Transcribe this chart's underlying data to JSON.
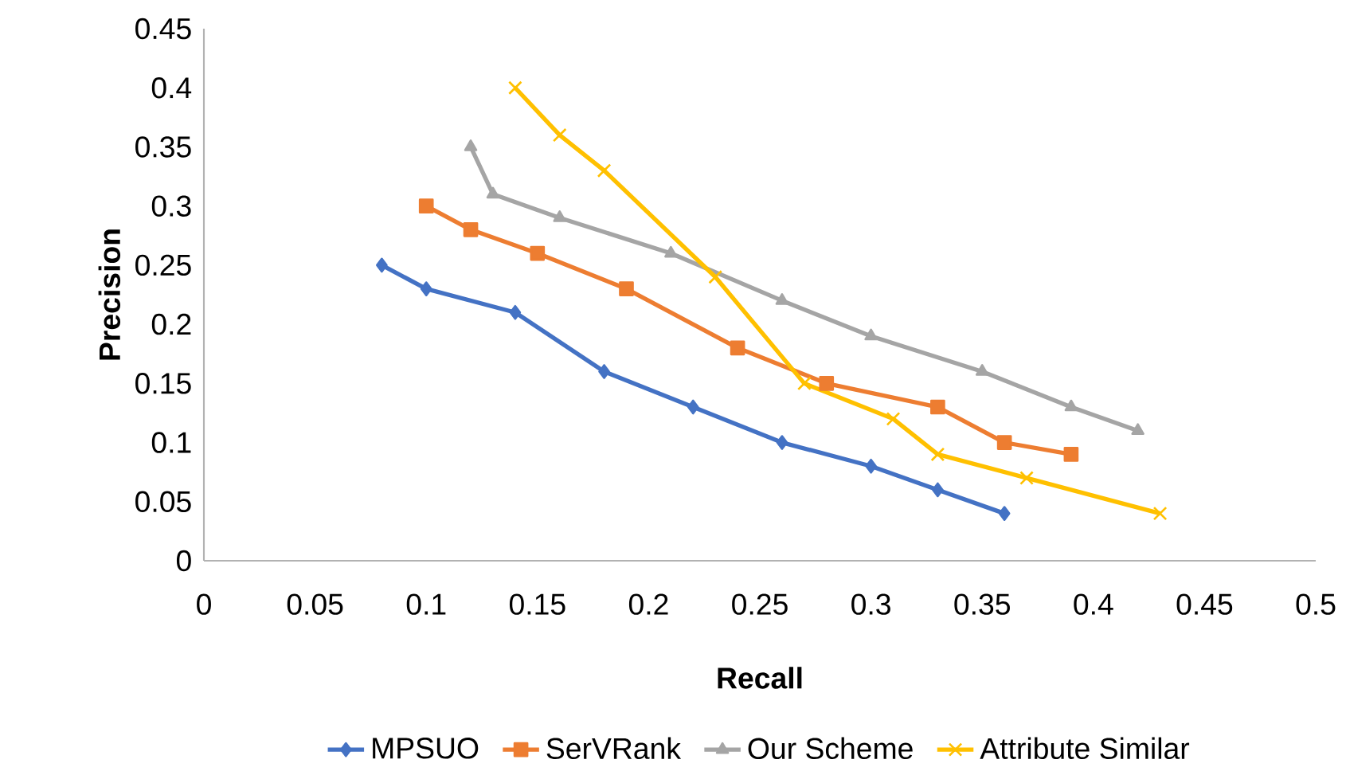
{
  "chart_data": {
    "type": "line",
    "xlabel": "Recall",
    "ylabel": "Precision",
    "xlim": [
      0,
      0.5
    ],
    "xticks": [
      0,
      0.05,
      0.1,
      0.15,
      0.2,
      0.25,
      0.3,
      0.35,
      0.4,
      0.45,
      0.5
    ],
    "ylim": [
      0,
      0.45
    ],
    "yticks": [
      0,
      0.05,
      0.1,
      0.15,
      0.2,
      0.25,
      0.3,
      0.35,
      0.4,
      0.45
    ],
    "grid": false,
    "legend": "bottom",
    "series": [
      {
        "name": "MPSUO",
        "color": "#4472c4",
        "marker": "diamond",
        "x": [
          0.08,
          0.1,
          0.14,
          0.18,
          0.22,
          0.26,
          0.3,
          0.33,
          0.36
        ],
        "values": [
          0.25,
          0.23,
          0.21,
          0.16,
          0.13,
          0.1,
          0.08,
          0.06,
          0.04
        ]
      },
      {
        "name": "SerVRank",
        "color": "#ed7d31",
        "marker": "square",
        "x": [
          0.1,
          0.12,
          0.15,
          0.19,
          0.24,
          0.28,
          0.33,
          0.36,
          0.39
        ],
        "values": [
          0.3,
          0.28,
          0.26,
          0.23,
          0.18,
          0.15,
          0.13,
          0.1,
          0.09
        ]
      },
      {
        "name": "Our Scheme",
        "color": "#a5a5a5",
        "marker": "triangle",
        "x": [
          0.12,
          0.13,
          0.16,
          0.21,
          0.26,
          0.3,
          0.35,
          0.39,
          0.42
        ],
        "values": [
          0.35,
          0.31,
          0.29,
          0.26,
          0.22,
          0.19,
          0.16,
          0.13,
          0.11
        ]
      },
      {
        "name": "Attribute Similar",
        "color": "#ffc000",
        "marker": "cross",
        "x": [
          0.14,
          0.16,
          0.18,
          0.23,
          0.27,
          0.31,
          0.33,
          0.37,
          0.43
        ],
        "values": [
          0.4,
          0.36,
          0.33,
          0.24,
          0.15,
          0.12,
          0.09,
          0.07,
          0.04
        ]
      }
    ]
  }
}
